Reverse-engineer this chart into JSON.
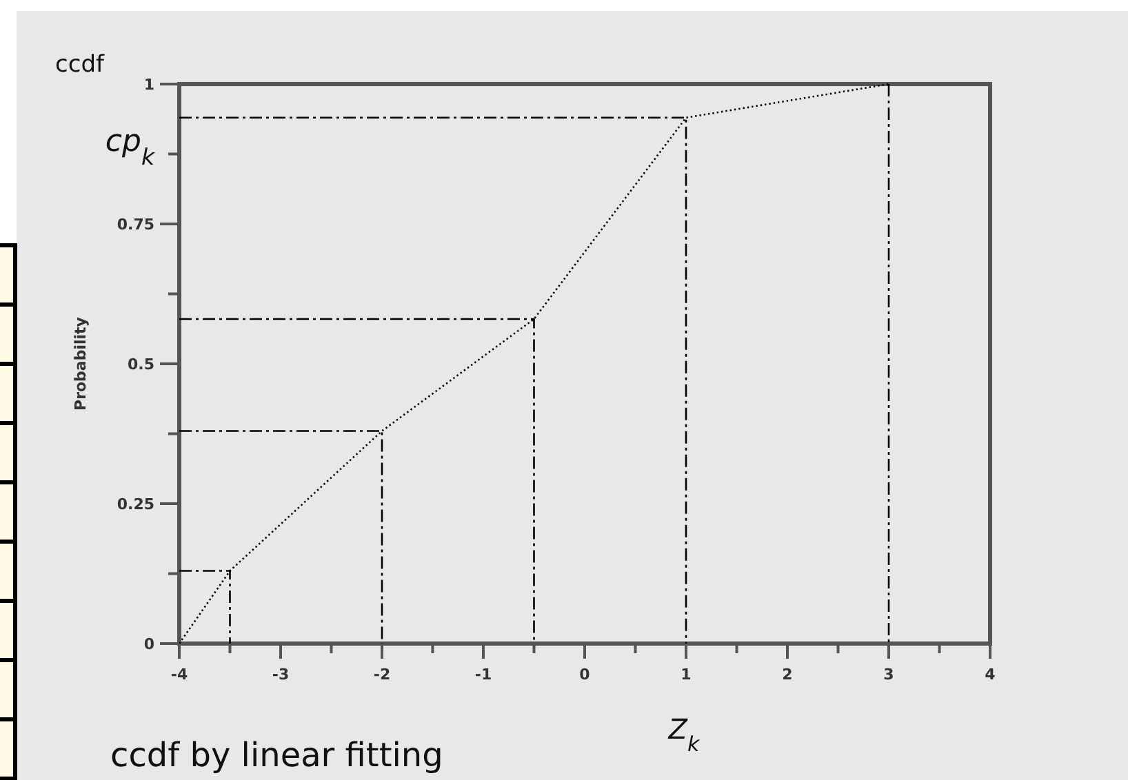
{
  "chart_data": {
    "type": "line",
    "ylabel": "Probability",
    "xlabel": "Z$_{k}$",
    "annotations": [
      "ccdf",
      {
        "text": "cp$_{k}$",
        "x": -4,
        "y": 0.94
      },
      "ccdf by linear fitting"
    ],
    "xlim": [
      -4,
      4
    ],
    "ylim": [
      0,
      1
    ],
    "xticks": [
      -4,
      {
        "value": -3.5,
        "label": null
      },
      -3,
      {
        "value": -2.5,
        "label": null
      },
      -2,
      {
        "value": -1.5,
        "label": null
      },
      -1,
      {
        "value": -0.5,
        "label": null
      },
      0,
      {
        "value": 0.5,
        "label": null
      },
      1,
      {
        "value": 1.5,
        "label": null
      },
      2,
      {
        "value": 2.5,
        "label": null
      },
      3,
      {
        "value": 3.5,
        "label": null
      },
      4
    ],
    "yticks": [
      0,
      {
        "value": 0.125,
        "label": null
      },
      0.25,
      {
        "value": 0.375,
        "label": null
      },
      0.5,
      {
        "value": 0.625,
        "label": null
      },
      0.75,
      {
        "value": 0.875,
        "label": null
      },
      1
    ],
    "marker": "none",
    "series": [
      {
        "color": "#000000",
        "line_style": "dotted",
        "x": [
          -4,
          -3.5,
          -2,
          -0.5,
          1,
          3
        ],
        "values": [
          0,
          0.13,
          0.38,
          0.58,
          0.94,
          1
        ]
      },
      {
        "color": "#000000",
        "line_style": "dashed",
        "x": [
          -4,
          -3.5,
          -3.5
        ],
        "values": [
          0.13,
          0.13,
          0
        ]
      },
      {
        "color": "#000000",
        "line_style": "dashed",
        "x": [
          -4,
          -2,
          -2
        ],
        "values": [
          0.38,
          0.38,
          0
        ]
      },
      {
        "color": "#000000",
        "line_style": "dashed",
        "x": [
          -4,
          -0.5,
          -0.5
        ],
        "values": [
          0.58,
          0.58,
          0
        ]
      },
      {
        "color": "#000000",
        "line_style": "dashed",
        "x": [
          -4,
          1,
          1
        ],
        "values": [
          0.94,
          0.94,
          0
        ]
      }
    ],
    "ref_lines": [
      {
        "axis": "x",
        "value": 3,
        "color": "#000000",
        "line_style": "dashed"
      }
    ]
  }
}
